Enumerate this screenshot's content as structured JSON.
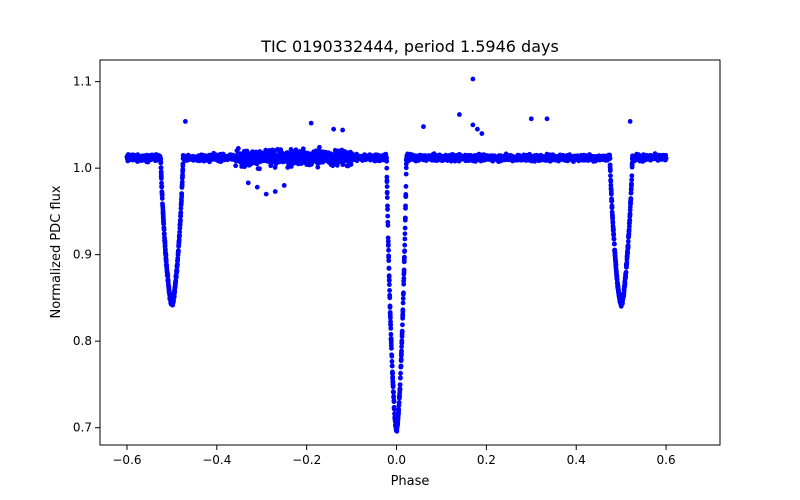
{
  "chart_data": {
    "type": "scatter",
    "title": "TIC 0190332444, period 1.5946 days",
    "xlabel": "Phase",
    "ylabel": "Normalized PDC flux",
    "xlim": [
      -0.66,
      0.72
    ],
    "ylim": [
      0.68,
      1.125
    ],
    "x_ticks": [
      -0.6,
      -0.4,
      -0.2,
      0.0,
      0.2,
      0.4,
      0.6
    ],
    "x_tick_labels": [
      "−0.6",
      "−0.4",
      "−0.2",
      "0.0",
      "0.2",
      "0.4",
      "0.6"
    ],
    "y_ticks": [
      0.7,
      0.8,
      0.9,
      1.0,
      1.1
    ],
    "y_tick_labels": [
      "0.7",
      "0.8",
      "0.9",
      "1.0",
      "1.1"
    ],
    "grid": false,
    "legend": "none",
    "marker_color": "#0000ff",
    "phase_range": [
      -0.6,
      0.6
    ],
    "baseline_flux": 1.012,
    "features": {
      "primary_eclipse": {
        "center": 0.0,
        "min_flux": 0.697,
        "half_width": 0.022
      },
      "secondary_eclipse": [
        {
          "center": -0.5,
          "min_flux": 0.843,
          "half_width": 0.025
        },
        {
          "center": 0.5,
          "min_flux": 0.843,
          "half_width": 0.025
        }
      ]
    },
    "outliers": [
      {
        "x": 0.17,
        "y": 1.103
      },
      {
        "x": 0.14,
        "y": 1.062
      },
      {
        "x": 0.3,
        "y": 1.057
      },
      {
        "x": 0.335,
        "y": 1.057
      },
      {
        "x": 0.17,
        "y": 1.05
      },
      {
        "x": 0.18,
        "y": 1.045
      },
      {
        "x": 0.19,
        "y": 1.04
      },
      {
        "x": 0.06,
        "y": 1.048
      },
      {
        "x": -0.47,
        "y": 1.054
      },
      {
        "x": 0.52,
        "y": 1.054
      },
      {
        "x": -0.19,
        "y": 1.052
      },
      {
        "x": -0.14,
        "y": 1.045
      },
      {
        "x": -0.12,
        "y": 1.044
      },
      {
        "x": -0.29,
        "y": 0.97
      },
      {
        "x": -0.27,
        "y": 0.973
      },
      {
        "x": -0.33,
        "y": 0.983
      },
      {
        "x": -0.31,
        "y": 0.978
      },
      {
        "x": -0.25,
        "y": 0.98
      }
    ]
  }
}
